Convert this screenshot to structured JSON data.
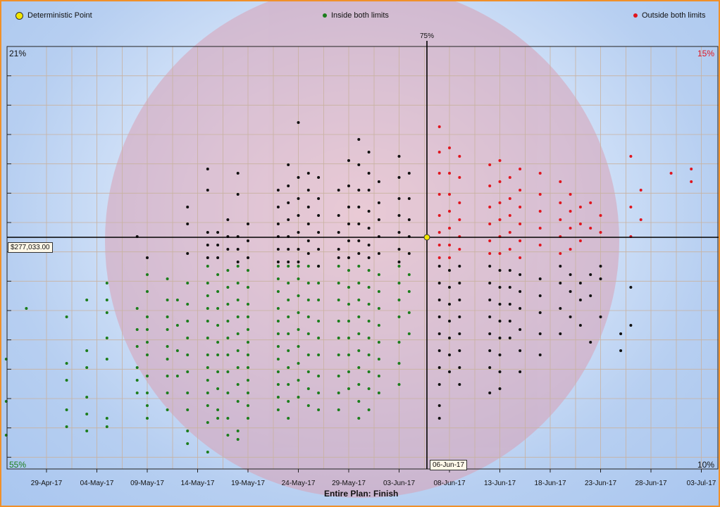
{
  "legend": {
    "deterministic": {
      "label": "Deterministic Point",
      "color": "#f2e600"
    },
    "inside": {
      "label": "Inside both limits",
      "color": "#1b7d1b"
    },
    "outside": {
      "label": "Outside both limits",
      "color": "#e0151e"
    }
  },
  "quadrants": {
    "top_left": {
      "text": "21%",
      "color": "#111111"
    },
    "top_right": {
      "text": "15%",
      "color": "#e0151e"
    },
    "bottom_left": {
      "text": "55%",
      "color": "#1b7d1b"
    },
    "bottom_right": {
      "text": "10%",
      "color": "#111111"
    }
  },
  "percentile_label": "75%",
  "cost_marker": "$277,033.00",
  "date_marker": "06-Jun-17",
  "x_title": "Entire Plan: Finish",
  "watermark_color": "#d8a0b4",
  "chart_data": {
    "type": "scatter",
    "xlabel": "Entire Plan: Finish",
    "x_ticks": [
      "29-Apr-17",
      "04-May-17",
      "09-May-17",
      "14-May-17",
      "19-May-17",
      "24-May-17",
      "29-May-17",
      "03-Jun-17",
      "08-Jun-17",
      "13-Jun-17",
      "18-Jun-17",
      "23-Jun-17",
      "28-Jun-17",
      "03-Jul-17"
    ],
    "deterministic_point": {
      "x": "06-Jun-17",
      "y": "$277,033.00"
    },
    "percentile": "75%",
    "scatter_columns": [
      {
        "x": "25-Apr-17",
        "green": [
          0.26,
          0.16,
          0.08
        ],
        "black": []
      },
      {
        "x": "27-Apr-17",
        "green": [
          0.38
        ],
        "black": []
      },
      {
        "x": "01-May-17",
        "green": [
          0.36,
          0.25,
          0.21,
          0.14,
          0.1
        ],
        "black": []
      },
      {
        "x": "03-May-17",
        "green": [
          0.4,
          0.28,
          0.24,
          0.17,
          0.13,
          0.09
        ],
        "black": []
      },
      {
        "x": "05-May-17",
        "green": [
          0.44,
          0.4,
          0.37,
          0.31,
          0.26,
          0.12,
          0.1
        ],
        "black": []
      },
      {
        "x": "08-May-17",
        "green": [
          0.38,
          0.33,
          0.29,
          0.24,
          0.21,
          0.18
        ],
        "black": [
          0.55
        ]
      },
      {
        "x": "09-May-17",
        "green": [
          0.46,
          0.42,
          0.36,
          0.33,
          0.3,
          0.27,
          0.22,
          0.18,
          0.15,
          0.12
        ],
        "black": [
          0.5
        ]
      },
      {
        "x": "11-May-17",
        "green": [
          0.45,
          0.4,
          0.36,
          0.33,
          0.29,
          0.26,
          0.22,
          0.18,
          0.14
        ],
        "black": []
      },
      {
        "x": "12-May-17",
        "green": [
          0.4,
          0.34,
          0.28,
          0.22
        ],
        "black": []
      },
      {
        "x": "13-May-17",
        "green": [
          0.44,
          0.39,
          0.35,
          0.31,
          0.27,
          0.23,
          0.18,
          0.14,
          0.09,
          0.06
        ],
        "black": [
          0.62,
          0.58,
          0.51
        ]
      },
      {
        "x": "15-May-17",
        "green": [
          0.48,
          0.44,
          0.41,
          0.38,
          0.35,
          0.31,
          0.27,
          0.24,
          0.21,
          0.18,
          0.15,
          0.11,
          0.04
        ],
        "black": [
          0.71,
          0.66,
          0.56,
          0.53,
          0.5
        ]
      },
      {
        "x": "16-May-17",
        "green": [
          0.46,
          0.42,
          0.38,
          0.34,
          0.3,
          0.27,
          0.23,
          0.19,
          0.14,
          0.12
        ],
        "black": [
          0.56,
          0.53,
          0.5
        ]
      },
      {
        "x": "17-May-17",
        "green": [
          0.47,
          0.43,
          0.39,
          0.35,
          0.31,
          0.27,
          0.23,
          0.18,
          0.12,
          0.08
        ],
        "black": [
          0.59,
          0.55,
          0.52
        ]
      },
      {
        "x": "18-May-17",
        "green": [
          0.48,
          0.44,
          0.4,
          0.36,
          0.32,
          0.28,
          0.24,
          0.2,
          0.16,
          0.09,
          0.07
        ],
        "black": [
          0.7,
          0.65,
          0.55,
          0.52,
          0.49
        ]
      },
      {
        "x": "19-May-17",
        "green": [
          0.47,
          0.43,
          0.39,
          0.36,
          0.33,
          0.3,
          0.27,
          0.24,
          0.21,
          0.18,
          0.15,
          0.12
        ],
        "black": [
          0.58,
          0.54,
          0.5
        ]
      },
      {
        "x": "22-May-17",
        "green": [
          0.48,
          0.45,
          0.42,
          0.38,
          0.35,
          0.32,
          0.29,
          0.26,
          0.23,
          0.2,
          0.17,
          0.14
        ],
        "black": [
          0.66,
          0.62,
          0.58,
          0.55,
          0.52,
          0.49
        ]
      },
      {
        "x": "23-May-17",
        "green": [
          0.48,
          0.44,
          0.4,
          0.36,
          0.32,
          0.28,
          0.24,
          0.2,
          0.16,
          0.12
        ],
        "black": [
          0.72,
          0.67,
          0.63,
          0.59,
          0.55,
          0.52,
          0.49
        ]
      },
      {
        "x": "24-May-17",
        "green": [
          0.48,
          0.45,
          0.41,
          0.37,
          0.33,
          0.29,
          0.25,
          0.21,
          0.17
        ],
        "black": [
          0.82,
          0.69,
          0.64,
          0.6,
          0.56,
          0.52,
          0.49
        ]
      },
      {
        "x": "25-May-17",
        "green": [
          0.48,
          0.44,
          0.4,
          0.36,
          0.32,
          0.27,
          0.23,
          0.19,
          0.15
        ],
        "black": [
          0.7,
          0.66,
          0.62,
          0.58,
          0.54,
          0.51
        ]
      },
      {
        "x": "26-May-17",
        "green": [
          0.48,
          0.44,
          0.4,
          0.35,
          0.31,
          0.27,
          0.22,
          0.18,
          0.14
        ],
        "black": [
          0.69,
          0.64,
          0.6,
          0.56,
          0.52,
          0.48
        ]
      },
      {
        "x": "28-May-17",
        "green": [
          0.48,
          0.44,
          0.4,
          0.35,
          0.31,
          0.27,
          0.22,
          0.18,
          0.14
        ],
        "black": [
          0.66,
          0.6,
          0.56,
          0.52,
          0.5
        ]
      },
      {
        "x": "29-May-17",
        "green": [
          0.47,
          0.43,
          0.39,
          0.35,
          0.31,
          0.27,
          0.23,
          0.19
        ],
        "black": [
          0.73,
          0.67,
          0.62,
          0.58,
          0.54,
          0.5
        ]
      },
      {
        "x": "30-May-17",
        "green": [
          0.48,
          0.44,
          0.4,
          0.36,
          0.32,
          0.28,
          0.24,
          0.2,
          0.16,
          0.12
        ],
        "black": [
          0.78,
          0.72,
          0.66,
          0.62,
          0.58,
          0.54,
          0.51
        ]
      },
      {
        "x": "31-May-17",
        "green": [
          0.47,
          0.43,
          0.39,
          0.35,
          0.31,
          0.27,
          0.23,
          0.19,
          0.14
        ],
        "black": [
          0.75,
          0.7,
          0.66,
          0.61,
          0.57,
          0.53,
          0.5
        ]
      },
      {
        "x": "01-Jun-17",
        "green": [
          0.46,
          0.42,
          0.38,
          0.34,
          0.3,
          0.26,
          0.22,
          0.18
        ],
        "black": [
          0.68,
          0.63,
          0.59,
          0.55,
          0.51
        ]
      },
      {
        "x": "03-Jun-17",
        "green": [
          0.48,
          0.44,
          0.4,
          0.36,
          0.3,
          0.25,
          0.2
        ],
        "black": [
          0.74,
          0.69,
          0.64,
          0.6,
          0.56,
          0.52,
          0.49
        ]
      },
      {
        "x": "04-Jun-17",
        "green": [
          0.46,
          0.42,
          0.37,
          0.32
        ],
        "black": [
          0.7,
          0.64,
          0.59,
          0.55,
          0.51
        ]
      }
    ],
    "right_columns": [
      {
        "x": "07-Jun-17",
        "red": [
          0.81,
          0.75,
          0.7,
          0.65,
          0.6,
          0.56,
          0.53,
          0.5
        ],
        "black": [
          0.48,
          0.44,
          0.4,
          0.36,
          0.32,
          0.28,
          0.24,
          0.2,
          0.15,
          0.12
        ]
      },
      {
        "x": "08-Jun-17",
        "red": [
          0.76,
          0.7,
          0.65,
          0.61,
          0.57,
          0.53,
          0.5
        ],
        "black": [
          0.47,
          0.43,
          0.39,
          0.35,
          0.31,
          0.27,
          0.23
        ]
      },
      {
        "x": "09-Jun-17",
        "red": [
          0.74,
          0.69,
          0.63,
          0.59,
          0.55,
          0.52
        ],
        "black": [
          0.48,
          0.44,
          0.4,
          0.36,
          0.32,
          0.28,
          0.24,
          0.2
        ]
      },
      {
        "x": "12-Jun-17",
        "red": [
          0.72,
          0.67,
          0.62,
          0.58,
          0.54,
          0.51
        ],
        "black": [
          0.48,
          0.44,
          0.4,
          0.36,
          0.32,
          0.28,
          0.24,
          0.18
        ]
      },
      {
        "x": "13-Jun-17",
        "red": [
          0.73,
          0.68,
          0.63,
          0.59,
          0.55,
          0.51
        ],
        "black": [
          0.47,
          0.43,
          0.39,
          0.35,
          0.31,
          0.27,
          0.23,
          0.19
        ]
      },
      {
        "x": "14-Jun-17",
        "red": [
          0.69,
          0.64,
          0.6,
          0.56,
          0.52
        ],
        "black": [
          0.47,
          0.43,
          0.39,
          0.35,
          0.31
        ]
      },
      {
        "x": "15-Jun-17",
        "red": [
          0.71,
          0.66,
          0.62,
          0.58,
          0.54,
          0.5
        ],
        "black": [
          0.46,
          0.42,
          0.38,
          0.33,
          0.28,
          0.23
        ]
      },
      {
        "x": "17-Jun-17",
        "red": [
          0.7,
          0.65,
          0.61,
          0.57,
          0.53
        ],
        "black": [
          0.45,
          0.41,
          0.37,
          0.32,
          0.27
        ]
      },
      {
        "x": "19-Jun-17",
        "red": [
          0.68,
          0.63,
          0.59,
          0.55,
          0.51
        ],
        "black": [
          0.48,
          0.44,
          0.38,
          0.32
        ]
      },
      {
        "x": "20-Jun-17",
        "red": [
          0.65,
          0.61,
          0.57,
          0.52
        ],
        "black": [
          0.46,
          0.42,
          0.36
        ]
      },
      {
        "x": "21-Jun-17",
        "red": [
          0.62,
          0.58,
          0.54
        ],
        "black": [
          0.44,
          0.4,
          0.34
        ]
      },
      {
        "x": "22-Jun-17",
        "red": [
          0.63,
          0.57
        ],
        "black": [
          0.46,
          0.41,
          0.3
        ]
      },
      {
        "x": "23-Jun-17",
        "red": [
          0.6,
          0.56
        ],
        "black": [
          0.48,
          0.45,
          0.36
        ]
      },
      {
        "x": "25-Jun-17",
        "red": [],
        "black": [
          0.32,
          0.28
        ]
      },
      {
        "x": "26-Jun-17",
        "red": [
          0.74,
          0.62,
          0.55
        ],
        "black": [
          0.43,
          0.34
        ]
      },
      {
        "x": "27-Jun-17",
        "red": [
          0.66,
          0.59
        ],
        "black": []
      },
      {
        "x": "30-Jun-17",
        "red": [
          0.7
        ],
        "black": []
      },
      {
        "x": "02-Jul-17",
        "red": [
          0.71,
          0.68
        ],
        "black": []
      }
    ]
  }
}
